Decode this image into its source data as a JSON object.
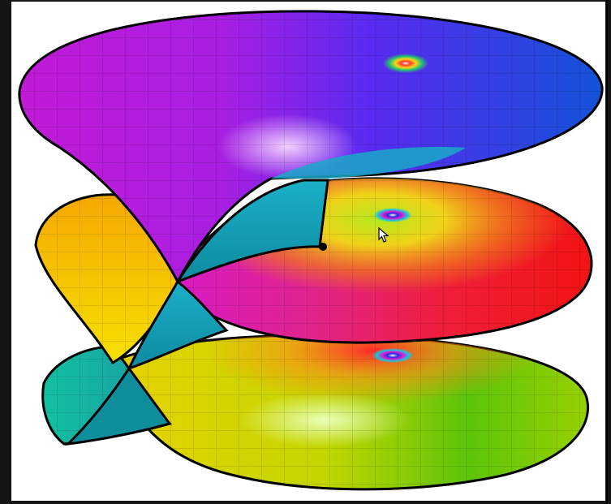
{
  "image": {
    "subject": "riemann-surface-sheets",
    "sheet_count": 3,
    "colors": {
      "background": "#ffffff",
      "outer_frame": "#151515",
      "outline": "#000000",
      "top_sheet": "#8a2ae6",
      "middle_sheet": "#e21f6e",
      "bottom_sheet": "#b9d400",
      "connector": "#1aa9b5",
      "left_yellow": "#f0c400",
      "left_teal": "#14c9a6"
    }
  }
}
